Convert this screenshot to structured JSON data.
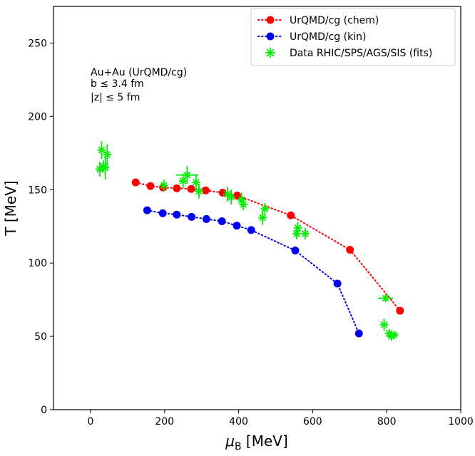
{
  "chart_data": {
    "type": "scatter",
    "xlabel": "μB [MeV]",
    "xlabel_main": "μ",
    "xlabel_sub": "B",
    "xlabel_unit": " [MeV]",
    "ylabel": "T [MeV]",
    "xlim": [
      -100,
      1000
    ],
    "ylim": [
      0,
      275
    ],
    "xticks": [
      0,
      200,
      400,
      600,
      800,
      1000
    ],
    "yticks": [
      0,
      50,
      100,
      150,
      200,
      250
    ],
    "grid": false,
    "legend_position": "top-right",
    "annotation": [
      "Au+Au (UrQMD/cg)",
      "b ≤ 3.4 fm",
      "|z| ≤ 5 fm"
    ],
    "series": [
      {
        "name": "UrQMD/cg (chem)",
        "style": "dotted-line-circle",
        "color": "#ff0000",
        "points": [
          {
            "x": 122,
            "y": 155
          },
          {
            "x": 162,
            "y": 152.5
          },
          {
            "x": 196,
            "y": 151.5
          },
          {
            "x": 233,
            "y": 151
          },
          {
            "x": 272,
            "y": 150.5
          },
          {
            "x": 311,
            "y": 149.5
          },
          {
            "x": 357,
            "y": 148
          },
          {
            "x": 396,
            "y": 146
          },
          {
            "x": 541,
            "y": 132.5
          },
          {
            "x": 701,
            "y": 109
          },
          {
            "x": 836,
            "y": 67.5
          }
        ]
      },
      {
        "name": "UrQMD/cg (kin)",
        "style": "dotted-line-circle",
        "color": "#0000ee",
        "points": [
          {
            "x": 153,
            "y": 136
          },
          {
            "x": 195,
            "y": 134
          },
          {
            "x": 233,
            "y": 133
          },
          {
            "x": 273,
            "y": 131.5
          },
          {
            "x": 313,
            "y": 130
          },
          {
            "x": 355,
            "y": 128.5
          },
          {
            "x": 395,
            "y": 125.5
          },
          {
            "x": 434,
            "y": 122.5
          },
          {
            "x": 553,
            "y": 108.5
          },
          {
            "x": 667,
            "y": 86
          },
          {
            "x": 725,
            "y": 52
          }
        ]
      },
      {
        "name": "Data RHIC/SPS/AGS/SIS (fits)",
        "style": "star-errorbar",
        "color": "#00ee00",
        "points": [
          {
            "x": 25,
            "y": 164,
            "xerr": 3,
            "yerr": 5
          },
          {
            "x": 30,
            "y": 177,
            "xerr": 3,
            "yerr": 6
          },
          {
            "x": 35,
            "y": 166,
            "xerr": 4,
            "yerr": 4
          },
          {
            "x": 40,
            "y": 165,
            "xerr": 4,
            "yerr": 8
          },
          {
            "x": 45,
            "y": 174,
            "xerr": 4,
            "yerr": 7
          },
          {
            "x": 198,
            "y": 153,
            "xerr": 6,
            "yerr": 4
          },
          {
            "x": 250,
            "y": 156,
            "xerr": 8,
            "yerr": 5
          },
          {
            "x": 261,
            "y": 160,
            "xerr": 30,
            "yerr": 6
          },
          {
            "x": 285,
            "y": 155,
            "xerr": 8,
            "yerr": 5
          },
          {
            "x": 293,
            "y": 149,
            "xerr": 6,
            "yerr": 5
          },
          {
            "x": 370,
            "y": 147,
            "xerr": 6,
            "yerr": 5
          },
          {
            "x": 380,
            "y": 145,
            "xerr": 8,
            "yerr": 5
          },
          {
            "x": 408,
            "y": 143,
            "xerr": 6,
            "yerr": 5
          },
          {
            "x": 413,
            "y": 140,
            "xerr": 8,
            "yerr": 4
          },
          {
            "x": 465,
            "y": 131,
            "xerr": 6,
            "yerr": 5
          },
          {
            "x": 471,
            "y": 137,
            "xerr": 8,
            "yerr": 4
          },
          {
            "x": 557,
            "y": 120,
            "xerr": 8,
            "yerr": 4
          },
          {
            "x": 560,
            "y": 124,
            "xerr": 6,
            "yerr": 4
          },
          {
            "x": 580,
            "y": 120,
            "xerr": 8,
            "yerr": 4
          },
          {
            "x": 797,
            "y": 76,
            "xerr": 20,
            "yerr": 2
          },
          {
            "x": 793,
            "y": 58,
            "xerr": 5,
            "yerr": 4
          },
          {
            "x": 807,
            "y": 52,
            "xerr": 5,
            "yerr": 3
          },
          {
            "x": 813,
            "y": 50,
            "xerr": 8,
            "yerr": 2
          },
          {
            "x": 820,
            "y": 51,
            "xerr": 8,
            "yerr": 2
          }
        ]
      }
    ]
  }
}
